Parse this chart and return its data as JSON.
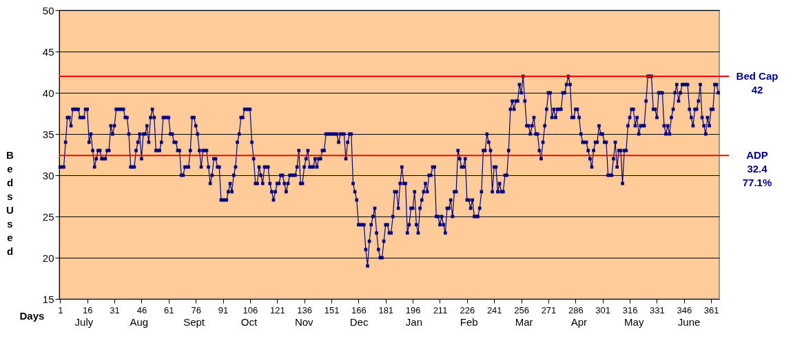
{
  "chart_data": {
    "type": "line",
    "xlabel": "Days",
    "ylabel": "Beds Used",
    "x": [
      1,
      2,
      3,
      4,
      5,
      6,
      7,
      8,
      9,
      10,
      11,
      12,
      13,
      14,
      15,
      16,
      17,
      18,
      19,
      20,
      21,
      22,
      23,
      24,
      25,
      26,
      27,
      28,
      29,
      30,
      31,
      32,
      33,
      34,
      35,
      36,
      37,
      38,
      39,
      40,
      41,
      42,
      43,
      44,
      45,
      46,
      47,
      48,
      49,
      50,
      51,
      52,
      53,
      54,
      55,
      56,
      57,
      58,
      59,
      60,
      61,
      62,
      63,
      64,
      65,
      66,
      67,
      68,
      69,
      70,
      71,
      72,
      73,
      74,
      75,
      76,
      77,
      78,
      79,
      80,
      81,
      82,
      83,
      84,
      85,
      86,
      87,
      88,
      89,
      90,
      91,
      92,
      93,
      94,
      95,
      96,
      97,
      98,
      99,
      100,
      101,
      102,
      103,
      104,
      105,
      106,
      107,
      108,
      109,
      110,
      111,
      112,
      113,
      114,
      115,
      116,
      117,
      118,
      119,
      120,
      121,
      122,
      123,
      124,
      125,
      126,
      127,
      128,
      129,
      130,
      131,
      132,
      133,
      134,
      135,
      136,
      137,
      138,
      139,
      140,
      141,
      142,
      143,
      144,
      145,
      146,
      147,
      148,
      149,
      150,
      151,
      152,
      153,
      154,
      155,
      156,
      157,
      158,
      159,
      160,
      161,
      162,
      163,
      164,
      165,
      166,
      167,
      168,
      169,
      170,
      171,
      172,
      173,
      174,
      175,
      176,
      177,
      178,
      179,
      180,
      181,
      182,
      183,
      184,
      185,
      186,
      187,
      188,
      189,
      190,
      191,
      192,
      193,
      194,
      195,
      196,
      197,
      198,
      199,
      200,
      201,
      202,
      203,
      204,
      205,
      206,
      207,
      208,
      209,
      210,
      211,
      212,
      213,
      214,
      215,
      216,
      217,
      218,
      219,
      220,
      221,
      222,
      223,
      224,
      225,
      226,
      227,
      228,
      229,
      230,
      231,
      232,
      233,
      234,
      235,
      236,
      237,
      238,
      239,
      240,
      241,
      242,
      243,
      244,
      245,
      246,
      247,
      248,
      249,
      250,
      251,
      252,
      253,
      254,
      255,
      256,
      257,
      258,
      259,
      260,
      261,
      262,
      263,
      264,
      265,
      266,
      267,
      268,
      269,
      270,
      271,
      272,
      273,
      274,
      275,
      276,
      277,
      278,
      279,
      280,
      281,
      282,
      283,
      284,
      285,
      286,
      287,
      288,
      289,
      290,
      291,
      292,
      293,
      294,
      295,
      296,
      297,
      298,
      299,
      300,
      301,
      302,
      303,
      304,
      305,
      306,
      307,
      308,
      309,
      310,
      311,
      312,
      313,
      314,
      315,
      316,
      317,
      318,
      319,
      320,
      321,
      322,
      323,
      324,
      325,
      326,
      327,
      328,
      329,
      330,
      331,
      332,
      333,
      334,
      335,
      336,
      337,
      338,
      339,
      340,
      341,
      342,
      343,
      344,
      345,
      346,
      347,
      348,
      349,
      350,
      351,
      352,
      353,
      354,
      355,
      356,
      357,
      358,
      359,
      360,
      361,
      362,
      363,
      364,
      365
    ],
    "series": [
      {
        "color": "#000080",
        "values": [
          31,
          31,
          31,
          34,
          37,
          37,
          36,
          38,
          38,
          38,
          38,
          37,
          37,
          37,
          38,
          38,
          34,
          35,
          33,
          31,
          32,
          33,
          33,
          32,
          32,
          32,
          33,
          33,
          36,
          35,
          36,
          38,
          38,
          38,
          38,
          38,
          37,
          37,
          35,
          31,
          31,
          31,
          33,
          34,
          35,
          32,
          35,
          35,
          36,
          34,
          37,
          38,
          37,
          33,
          33,
          33,
          34,
          37,
          37,
          37,
          37,
          35,
          35,
          34,
          34,
          33,
          33,
          30,
          30,
          31,
          31,
          31,
          33,
          37,
          37,
          36,
          35,
          33,
          31,
          33,
          33,
          33,
          31,
          29,
          30,
          32,
          32,
          31,
          31,
          27,
          27,
          27,
          27,
          28,
          29,
          28,
          30,
          31,
          34,
          35,
          37,
          37,
          38,
          38,
          38,
          38,
          34,
          32,
          29,
          29,
          31,
          30,
          29,
          31,
          31,
          31,
          29,
          28,
          27,
          28,
          29,
          29,
          30,
          30,
          29,
          28,
          29,
          30,
          30,
          30,
          30,
          31,
          33,
          29,
          29,
          31,
          32,
          33,
          31,
          31,
          31,
          32,
          31,
          32,
          32,
          33,
          33,
          35,
          35,
          35,
          35,
          35,
          35,
          35,
          34,
          35,
          35,
          35,
          32,
          34,
          35,
          35,
          29,
          28,
          27,
          24,
          24,
          24,
          24,
          21,
          19,
          22,
          24,
          25,
          26,
          23,
          21,
          20,
          20,
          22,
          24,
          24,
          23,
          23,
          25,
          28,
          28,
          26,
          29,
          31,
          29,
          29,
          23,
          24,
          26,
          26,
          28,
          24,
          23,
          26,
          27,
          28,
          29,
          28,
          30,
          30,
          31,
          31,
          25,
          25,
          24,
          25,
          24,
          23,
          26,
          26,
          27,
          25,
          28,
          28,
          33,
          32,
          31,
          31,
          32,
          27,
          27,
          26,
          27,
          25,
          25,
          25,
          26,
          28,
          33,
          33,
          35,
          34,
          33,
          28,
          31,
          31,
          28,
          29,
          28,
          28,
          30,
          30,
          33,
          38,
          39,
          38,
          39,
          39,
          41,
          40,
          42,
          39,
          36,
          36,
          35,
          36,
          37,
          35,
          35,
          33,
          32,
          34,
          36,
          38,
          40,
          40,
          37,
          38,
          37,
          38,
          38,
          38,
          40,
          40,
          41,
          42,
          41,
          37,
          37,
          38,
          38,
          37,
          35,
          34,
          34,
          34,
          33,
          32,
          31,
          33,
          34,
          34,
          36,
          35,
          35,
          34,
          34,
          30,
          30,
          30,
          32,
          34,
          31,
          33,
          33,
          29,
          33,
          33,
          36,
          37,
          38,
          38,
          36,
          37,
          35,
          36,
          36,
          36,
          39,
          42,
          42,
          42,
          38,
          38,
          37,
          40,
          40,
          40,
          36,
          35,
          36,
          35,
          37,
          38,
          40,
          41,
          39,
          40,
          41,
          41,
          41,
          41,
          38,
          37,
          36,
          38,
          38,
          39,
          41,
          37,
          36,
          35,
          37,
          36,
          38,
          38,
          41,
          41,
          40
        ]
      }
    ],
    "xlim": [
      0.5,
      365.5
    ],
    "xticks": [
      1,
      16,
      31,
      46,
      61,
      76,
      91,
      106,
      121,
      136,
      151,
      166,
      181,
      196,
      211,
      226,
      241,
      256,
      271,
      286,
      301,
      316,
      331,
      346,
      361
    ],
    "annotations": [
      "July",
      "Aug",
      "Sept",
      "Oct",
      "Nov",
      "Dec",
      "Jan",
      "Feb",
      "Mar",
      "Apr",
      "May",
      "June"
    ],
    "ylim": [
      15,
      50
    ],
    "yticks": [
      15,
      20,
      25,
      30,
      35,
      40,
      45,
      50
    ],
    "grid": "y",
    "marker": "square",
    "line_style": "solid",
    "ref_lines": [
      {
        "axis": "y",
        "value": 42,
        "label": "Bed Cap\n42",
        "color": "#ff0000"
      },
      {
        "axis": "y",
        "value": 32.4,
        "label": "ADP\n32.4\n77.1%",
        "color": "#ff0000"
      }
    ]
  }
}
